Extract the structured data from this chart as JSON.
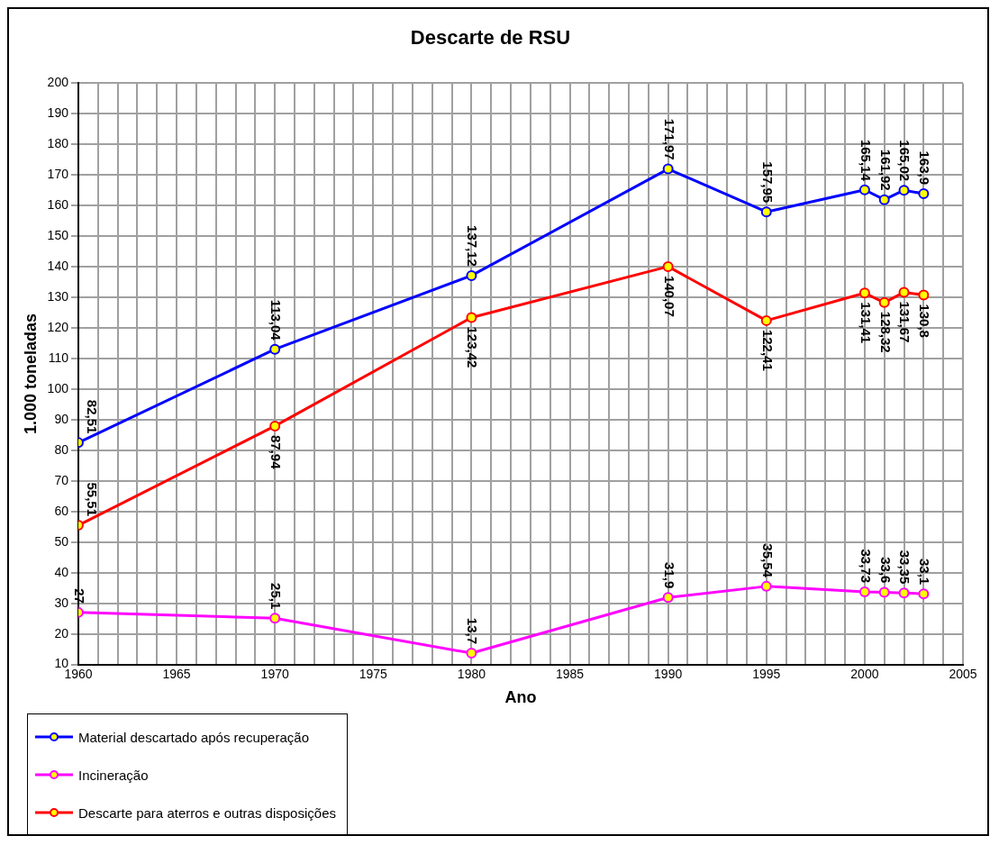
{
  "chart_data": {
    "type": "line",
    "title": "Descarte de RSU",
    "xlabel": "Ano",
    "ylabel": "1.000 toneladas",
    "x": [
      1960,
      1970,
      1980,
      1990,
      1995,
      2000,
      2001,
      2002,
      2003
    ],
    "series": [
      {
        "name": "Material descartado após recuperação",
        "color": "#0000ff",
        "values": [
          82.51,
          113.04,
          137.12,
          171.97,
          157.95,
          165.14,
          161.92,
          165.02,
          163.9
        ],
        "value_labels": [
          "82,51",
          "113,04",
          "137,12",
          "171,97",
          "157,95",
          "165,14",
          "161,92",
          "165,02",
          "163,9"
        ]
      },
      {
        "name": "Incineração",
        "color": "#ff00ff",
        "values": [
          27,
          25.1,
          13.7,
          31.9,
          35.54,
          33.73,
          33.6,
          33.35,
          33.1
        ],
        "value_labels": [
          "27",
          "25,1",
          "13,7",
          "31,9",
          "35,54",
          "33,73",
          "33,6",
          "33,35",
          "33,1"
        ]
      },
      {
        "name": "Descarte para aterros e outras disposições",
        "color": "#ff0000",
        "values": [
          55.51,
          87.94,
          123.42,
          140.07,
          122.41,
          131.41,
          128.32,
          131.67,
          130.8
        ],
        "value_labels": [
          "55,51",
          "87,94",
          "123,42",
          "140,07",
          "122,41",
          "131,41",
          "128,32",
          "131,67",
          "130,8"
        ]
      }
    ],
    "xlim": [
      1960,
      2005
    ],
    "xticks": [
      1960,
      {
        "value": 1961,
        "label": null
      },
      {
        "value": 1962,
        "label": null
      },
      {
        "value": 1963,
        "label": null
      },
      {
        "value": 1964,
        "label": null
      },
      1965,
      {
        "value": 1966,
        "label": null
      },
      {
        "value": 1967,
        "label": null
      },
      {
        "value": 1968,
        "label": null
      },
      {
        "value": 1969,
        "label": null
      },
      1970,
      {
        "value": 1971,
        "label": null
      },
      {
        "value": 1972,
        "label": null
      },
      {
        "value": 1973,
        "label": null
      },
      {
        "value": 1974,
        "label": null
      },
      1975,
      {
        "value": 1976,
        "label": null
      },
      {
        "value": 1977,
        "label": null
      },
      {
        "value": 1978,
        "label": null
      },
      {
        "value": 1979,
        "label": null
      },
      1980,
      {
        "value": 1981,
        "label": null
      },
      {
        "value": 1982,
        "label": null
      },
      {
        "value": 1983,
        "label": null
      },
      {
        "value": 1984,
        "label": null
      },
      1985,
      {
        "value": 1986,
        "label": null
      },
      {
        "value": 1987,
        "label": null
      },
      {
        "value": 1988,
        "label": null
      },
      {
        "value": 1989,
        "label": null
      },
      1990,
      {
        "value": 1991,
        "label": null
      },
      {
        "value": 1992,
        "label": null
      },
      {
        "value": 1993,
        "label": null
      },
      {
        "value": 1994,
        "label": null
      },
      1995,
      {
        "value": 1996,
        "label": null
      },
      {
        "value": 1997,
        "label": null
      },
      {
        "value": 1998,
        "label": null
      },
      {
        "value": 1999,
        "label": null
      },
      2000,
      {
        "value": 2001,
        "label": null
      },
      {
        "value": 2002,
        "label": null
      },
      {
        "value": 2003,
        "label": null
      },
      {
        "value": 2004,
        "label": null
      },
      2005
    ],
    "ylim": [
      10,
      200
    ],
    "yticks": [
      10,
      20,
      30,
      40,
      50,
      60,
      70,
      80,
      90,
      100,
      110,
      120,
      130,
      140,
      150,
      160,
      170,
      180,
      190,
      200
    ],
    "grid": true,
    "legend": "bottom left",
    "marker": "circle",
    "line_style": "solid"
  }
}
